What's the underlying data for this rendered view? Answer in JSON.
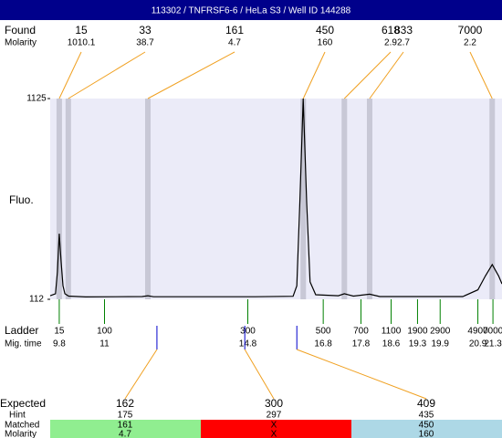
{
  "chart_data": {
    "type": "line",
    "title": "113302 / TNFRSF6-6 / HeLa S3 / Well ID 144288",
    "y_label": "Fluo.",
    "ylim": [
      112,
      1125
    ],
    "yticks": [
      112,
      1125
    ],
    "xlim": [
      9.56,
      21.54
    ],
    "trace": {
      "color": "#000000",
      "x": [
        9.56,
        9.7,
        9.75,
        9.8,
        9.85,
        9.9,
        9.95,
        10.05,
        10.5,
        12.0,
        12.15,
        12.3,
        15.0,
        16.0,
        16.1,
        16.18,
        16.27,
        16.36,
        16.45,
        16.6,
        17.2,
        17.36,
        17.6,
        18.03,
        18.3,
        20.5,
        20.9,
        21.1,
        21.28,
        21.45,
        21.54
      ],
      "y": [
        130,
        140,
        250,
        443,
        300,
        180,
        140,
        128,
        124,
        126,
        130,
        125,
        125,
        127,
        180,
        600,
        1125,
        600,
        200,
        135,
        130,
        140,
        128,
        138,
        126,
        126,
        160,
        230,
        287,
        230,
        190
      ]
    },
    "found": {
      "label": "Found",
      "sizes": [
        15,
        33,
        161,
        450,
        618,
        833,
        7000
      ],
      "molarity_label": "Molarity",
      "molarity": [
        1010.1,
        38.7,
        4.7,
        160,
        2.9,
        2.7,
        2.2
      ],
      "times": [
        9.8,
        10.04,
        12.15,
        16.27,
        17.36,
        18.03,
        21.28
      ]
    },
    "ladder": {
      "label": "Ladder",
      "sizes": [
        15,
        100,
        300,
        500,
        700,
        1100,
        1900,
        2900,
        4900,
        7000
      ],
      "mig_label": "Mig. time",
      "mig_times": [
        9.8,
        11,
        14.8,
        16.8,
        17.8,
        18.6,
        19.3,
        19.9,
        20.9,
        21.3
      ]
    },
    "expected": {
      "label": "Expected",
      "sizes": [
        162,
        300,
        409
      ],
      "times": [
        12.39,
        14.72,
        16.1
      ],
      "hint_label": "Hint",
      "hints": [
        175,
        297,
        435
      ],
      "matched_label": "Matched",
      "matched": [
        "161",
        "X",
        "450"
      ],
      "matched_colors": [
        "#90ee90",
        "#ff0000",
        "#add8e6"
      ],
      "molarity_label": "Molarity",
      "molarity": [
        "4.7",
        "X",
        "160"
      ]
    }
  }
}
